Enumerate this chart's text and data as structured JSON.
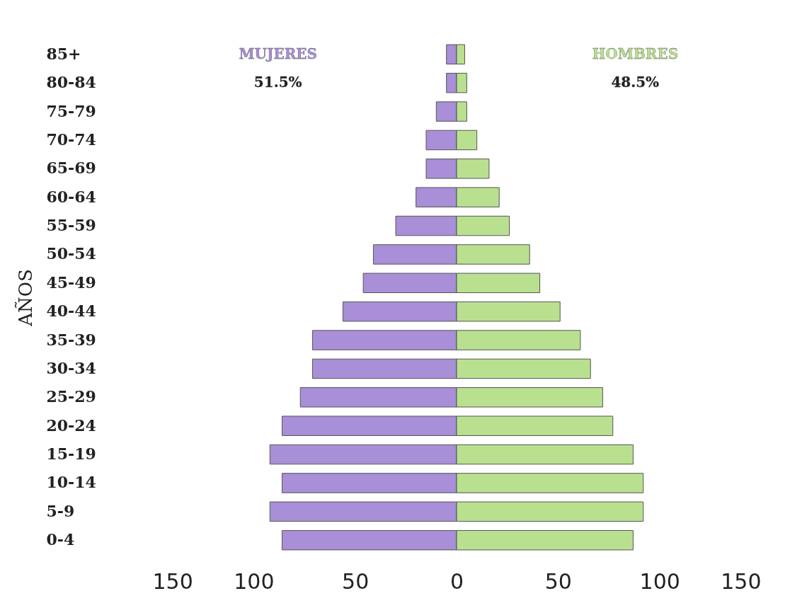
{
  "chart_data": {
    "type": "bar",
    "orientation": "horizontal",
    "stacked": true,
    "ylabel": "AÑOS",
    "categories": [
      "85+",
      "80-84",
      "75-79",
      "70-74",
      "65-69",
      "60-64",
      "55-59",
      "50-54",
      "45-49",
      "40-44",
      "35-39",
      "30-34",
      "25-29",
      "20-24",
      "15-19",
      "10-14",
      "5-9",
      "0-4"
    ],
    "series": [
      {
        "name": "MUJERES",
        "color": "#a88fd8",
        "values": [
          -5,
          -5,
          -10,
          -15,
          -15,
          -20,
          -30,
          -41,
          -46,
          -56,
          -71,
          -71,
          -77,
          -86,
          -92,
          -86,
          -92,
          -86
        ]
      },
      {
        "name": "HOMBRES",
        "color": "#b9e08f",
        "values": [
          4,
          5,
          5,
          10,
          16,
          21,
          26,
          36,
          41,
          51,
          61,
          66,
          72,
          77,
          87,
          92,
          92,
          87
        ]
      }
    ],
    "annotations": [
      "51.5%",
      "48.5%"
    ],
    "xlim": [
      -150,
      150
    ],
    "xticks": [
      {
        "value": -150,
        "label": "150"
      },
      {
        "value": -100,
        "label": "100"
      },
      {
        "value": -50,
        "label": "50"
      },
      0,
      50,
      100,
      150
    ],
    "legend": false,
    "grid": false
  }
}
